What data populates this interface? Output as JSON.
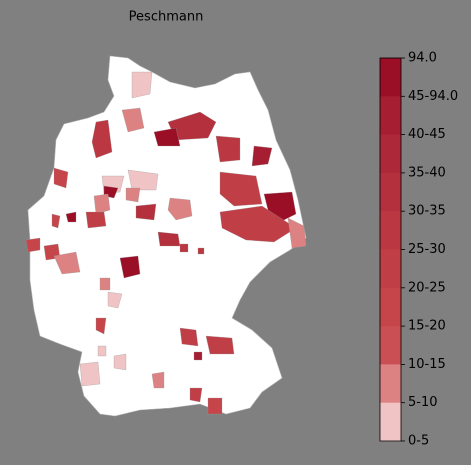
{
  "title": "Peschmann",
  "colorbar": {
    "labels": [
      "94.0",
      "45-94.0",
      "40-45",
      "35-40",
      "30-35",
      "25-30",
      "20-25",
      "15-20",
      "10-15",
      "5-10",
      "0-5"
    ],
    "colors": [
      "#9a0e26",
      "#a51e31",
      "#ad2838",
      "#b4303d",
      "#bb3741",
      "#c03e46",
      "#c5454b",
      "#c94f54",
      "#dc8282",
      "#f0c4c4",
      "#ffffff"
    ]
  }
}
